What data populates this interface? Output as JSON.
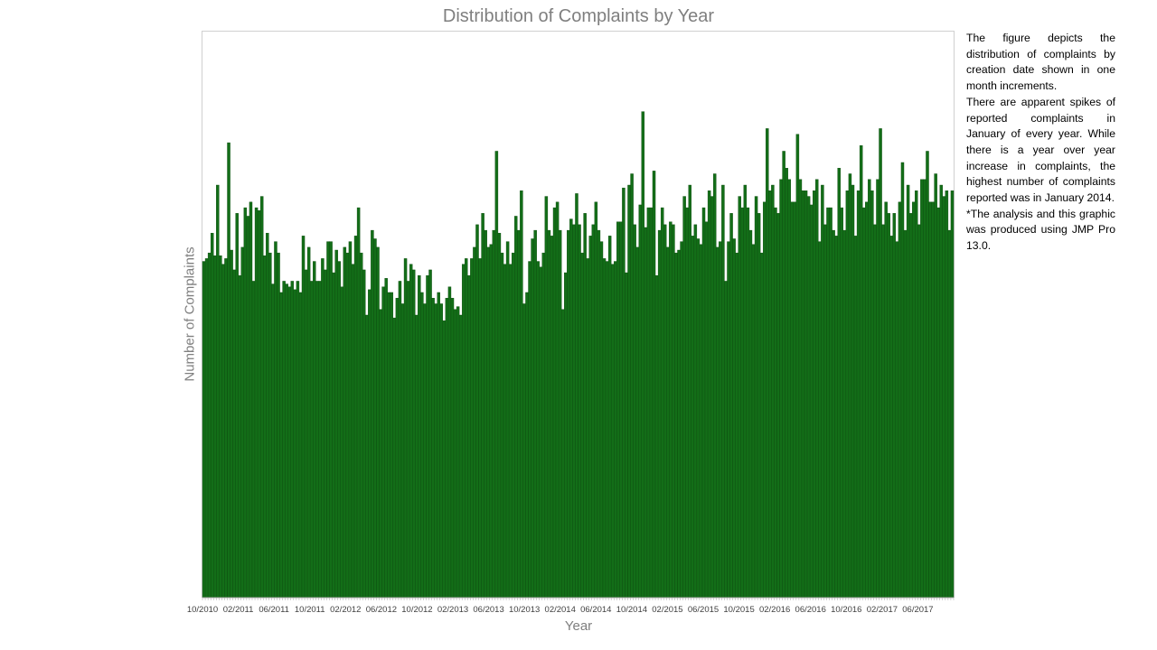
{
  "chart_data": {
    "type": "bar",
    "title": "Distribution of Complaints by Year",
    "xlabel": "Year",
    "ylabel": "Number of Complaints",
    "bar_color": "#136e18",
    "bar_edge_color": "#0b4a0d",
    "grid": false,
    "legend": "none",
    "ylim": [
      0,
      1000
    ],
    "x_tick_labels": [
      "10/2010",
      "02/2011",
      "06/2011",
      "10/2011",
      "02/2012",
      "06/2012",
      "10/2012",
      "02/2013",
      "06/2013",
      "10/2013",
      "02/2014",
      "06/2014",
      "10/2014",
      "02/2015",
      "06/2015",
      "10/2015",
      "02/2016",
      "06/2016",
      "10/2016",
      "02/2017",
      "06/2017"
    ],
    "x_start": "2010-10",
    "x_end": "2017-10",
    "values": [
      595,
      600,
      610,
      645,
      605,
      730,
      605,
      590,
      600,
      805,
      615,
      580,
      680,
      570,
      620,
      690,
      675,
      700,
      560,
      690,
      685,
      710,
      605,
      645,
      610,
      555,
      630,
      610,
      540,
      560,
      555,
      550,
      560,
      545,
      560,
      540,
      640,
      580,
      620,
      560,
      595,
      560,
      560,
      600,
      580,
      630,
      630,
      575,
      615,
      595,
      550,
      620,
      610,
      630,
      590,
      640,
      690,
      610,
      580,
      500,
      545,
      650,
      635,
      620,
      510,
      550,
      565,
      540,
      540,
      495,
      530,
      560,
      520,
      600,
      560,
      590,
      580,
      500,
      570,
      540,
      520,
      570,
      580,
      530,
      520,
      540,
      520,
      490,
      530,
      550,
      530,
      510,
      515,
      500,
      590,
      600,
      570,
      600,
      620,
      660,
      600,
      680,
      650,
      620,
      625,
      650,
      790,
      645,
      610,
      590,
      630,
      590,
      610,
      675,
      650,
      720,
      520,
      540,
      595,
      635,
      650,
      595,
      585,
      610,
      710,
      650,
      640,
      690,
      700,
      650,
      510,
      575,
      650,
      670,
      660,
      715,
      660,
      610,
      680,
      600,
      640,
      660,
      700,
      650,
      630,
      600,
      595,
      640,
      590,
      595,
      665,
      665,
      725,
      575,
      730,
      750,
      660,
      620,
      695,
      860,
      655,
      690,
      690,
      755,
      570,
      650,
      690,
      660,
      620,
      665,
      660,
      610,
      615,
      630,
      710,
      690,
      730,
      640,
      660,
      635,
      625,
      690,
      665,
      720,
      710,
      750,
      620,
      630,
      730,
      560,
      630,
      680,
      635,
      610,
      710,
      690,
      730,
      690,
      650,
      625,
      710,
      680,
      610,
      700,
      830,
      720,
      730,
      690,
      680,
      740,
      790,
      760,
      740,
      700,
      700,
      820,
      740,
      720,
      720,
      710,
      695,
      720,
      740,
      630,
      730,
      660,
      690,
      690,
      650,
      640,
      760,
      690,
      650,
      720,
      750,
      730,
      640,
      720,
      800,
      690,
      700,
      740,
      720,
      660,
      740,
      830,
      660,
      700,
      680,
      640,
      680,
      630,
      700,
      770,
      650,
      730,
      680,
      700,
      720,
      660,
      740,
      740,
      790,
      700,
      700,
      750,
      690,
      730,
      710,
      720,
      650,
      720
    ]
  }
}
